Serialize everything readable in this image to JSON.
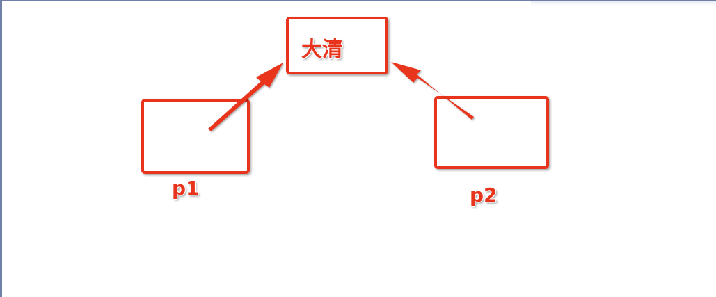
{
  "diagram": {
    "top_node": {
      "label": "大清"
    },
    "left_node": {
      "label": "p1"
    },
    "right_node": {
      "label": "p2"
    },
    "accent_color": "#e8341c"
  }
}
